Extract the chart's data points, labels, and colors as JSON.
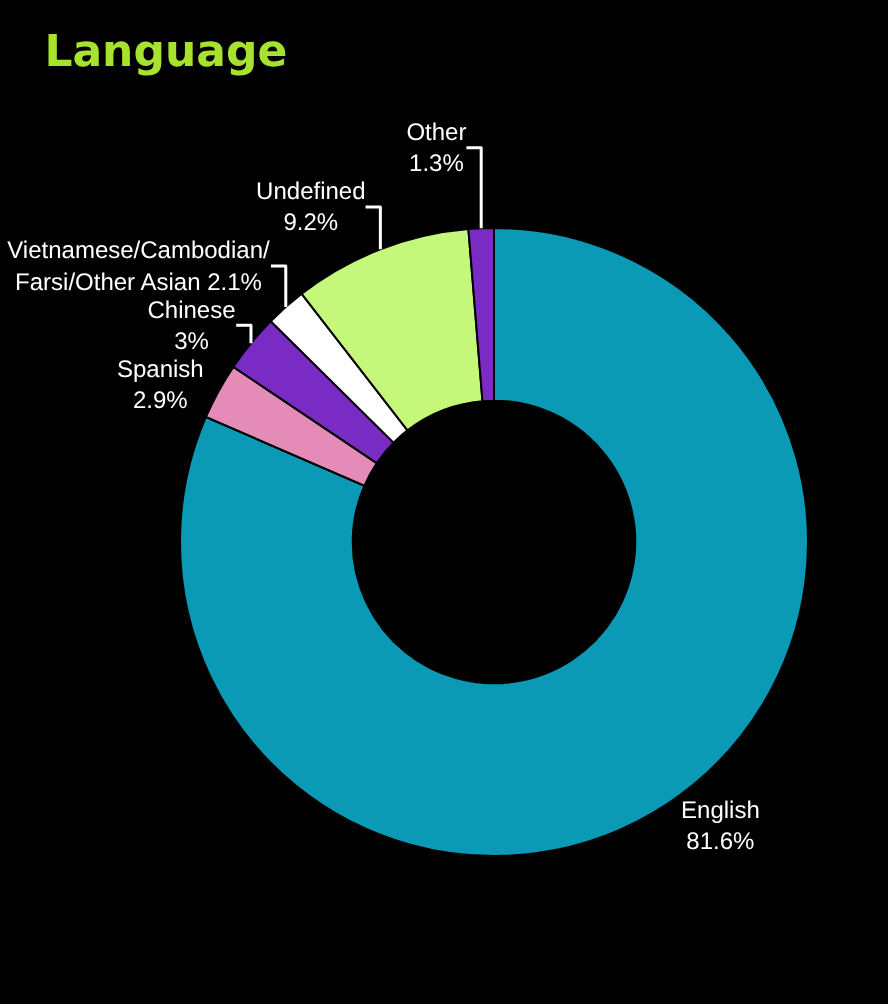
{
  "chart_data": {
    "type": "donut",
    "title": "Language",
    "categories": [
      "English",
      "Spanish",
      "Chinese",
      "Vietnamese/Cambodian/Farsi/Other Asian",
      "Undefined",
      "Other"
    ],
    "values": [
      81.6,
      2.9,
      3,
      2.1,
      9.2,
      1.3
    ],
    "value_labels": [
      "81.6%",
      "2.9%",
      "3%",
      "2.1%",
      "9.2%",
      "1.3%"
    ],
    "colors": [
      "#0a9ab5",
      "#e48bb8",
      "#7a2bc4",
      "#ffffff",
      "#c4f77a",
      "#7a2bc4"
    ],
    "legend": false
  }
}
